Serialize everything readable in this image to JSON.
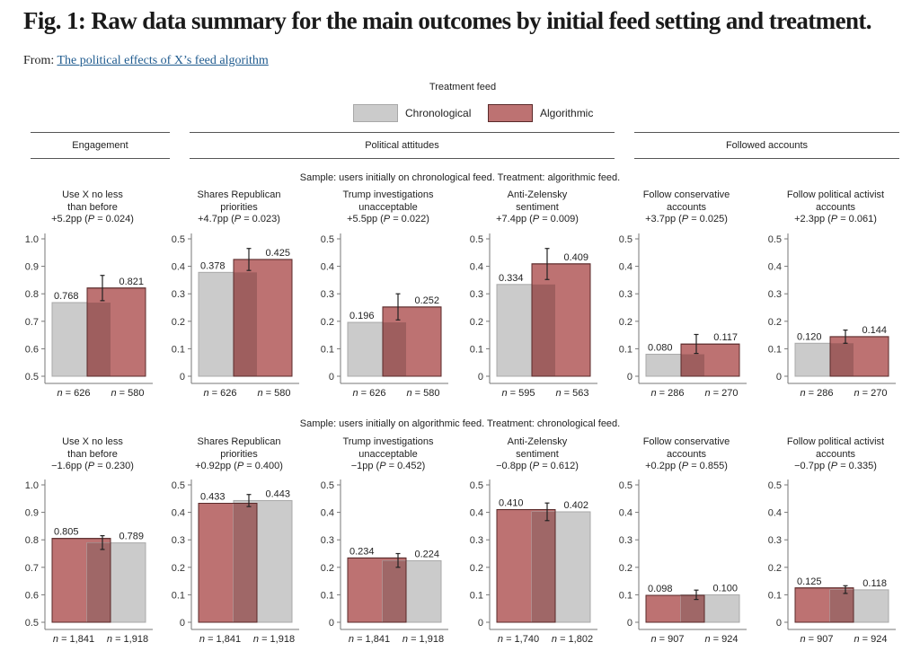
{
  "figure": {
    "title": "Fig. 1: Raw data summary for the main outcomes by initial feed setting and treatment.",
    "from_label": "From:",
    "from_link": "The political effects of X’s feed algorithm"
  },
  "legend": {
    "title": "Treatment feed",
    "items": [
      {
        "label": "Chronological",
        "color": "#cbcbcb"
      },
      {
        "label": "Algorithmic",
        "color": "#bd7272"
      }
    ]
  },
  "group_headers": [
    "Engagement",
    "Political attitudes",
    "Followed accounts"
  ],
  "rows": [
    {
      "sample_label": "Sample: users initially on chronological feed. Treatment: algorithmic feed."
    },
    {
      "sample_label": "Sample: users initially on algorithmic feed. Treatment: chronological feed."
    }
  ],
  "colors": {
    "chronological": "#cbcbcb",
    "algorithmic": "#bd7272",
    "overlap": "#9a5c5c",
    "axis": "#777777"
  },
  "chart_data": [
    {
      "type": "bar",
      "row": 0,
      "title_lines": [
        "Use X no less",
        "than before"
      ],
      "effect": "+5.2pp",
      "p": "0.024",
      "ylim": [
        0.5,
        1.0
      ],
      "yticks": [
        "0.5",
        "0.6",
        "0.7",
        "0.8",
        "0.9",
        "1.0"
      ],
      "bars": [
        {
          "series": "Chronological",
          "value": 0.768,
          "label": "0.768",
          "n": "n = 626"
        },
        {
          "series": "Algorithmic",
          "value": 0.821,
          "label": "0.821",
          "n": "n = 580",
          "ci": [
            0.775,
            0.867
          ]
        }
      ]
    },
    {
      "type": "bar",
      "row": 0,
      "title_lines": [
        "Shares Republican",
        "priorities"
      ],
      "effect": "+4.7pp",
      "p": "0.023",
      "ylim": [
        0,
        0.5
      ],
      "yticks": [
        "0",
        "0.1",
        "0.2",
        "0.3",
        "0.4",
        "0.5"
      ],
      "bars": [
        {
          "series": "Chronological",
          "value": 0.378,
          "label": "0.378",
          "n": "n = 626"
        },
        {
          "series": "Algorithmic",
          "value": 0.425,
          "label": "0.425",
          "n": "n = 580",
          "ci": [
            0.385,
            0.465
          ]
        }
      ]
    },
    {
      "type": "bar",
      "row": 0,
      "title_lines": [
        "Trump investigations",
        "unacceptable"
      ],
      "effect": "+5.5pp",
      "p": "0.022",
      "ylim": [
        0,
        0.5
      ],
      "yticks": [
        "0",
        "0.1",
        "0.2",
        "0.3",
        "0.4",
        "0.5"
      ],
      "bars": [
        {
          "series": "Chronological",
          "value": 0.196,
          "label": "0.196",
          "n": "n = 626"
        },
        {
          "series": "Algorithmic",
          "value": 0.252,
          "label": "0.252",
          "n": "n = 580",
          "ci": [
            0.205,
            0.3
          ]
        }
      ]
    },
    {
      "type": "bar",
      "row": 0,
      "title_lines": [
        "Anti-Zelensky",
        "sentiment"
      ],
      "effect": "+7.4pp",
      "p": "0.009",
      "ylim": [
        0,
        0.5
      ],
      "yticks": [
        "0",
        "0.1",
        "0.2",
        "0.3",
        "0.4",
        "0.5"
      ],
      "bars": [
        {
          "series": "Chronological",
          "value": 0.334,
          "label": "0.334",
          "n": "n = 595"
        },
        {
          "series": "Algorithmic",
          "value": 0.409,
          "label": "0.409",
          "n": "n = 563",
          "ci": [
            0.352,
            0.465
          ]
        }
      ]
    },
    {
      "type": "bar",
      "row": 0,
      "title_lines": [
        "Follow conservative",
        "accounts"
      ],
      "effect": "+3.7pp",
      "p": "0.025",
      "ylim": [
        0,
        0.5
      ],
      "yticks": [
        "0",
        "0.1",
        "0.2",
        "0.3",
        "0.4",
        "0.5"
      ],
      "bars": [
        {
          "series": "Chronological",
          "value": 0.08,
          "label": "0.080",
          "n": "n = 286"
        },
        {
          "series": "Algorithmic",
          "value": 0.117,
          "label": "0.117",
          "n": "n = 270",
          "ci": [
            0.083,
            0.152
          ]
        }
      ]
    },
    {
      "type": "bar",
      "row": 0,
      "title_lines": [
        "Follow political activist",
        "accounts"
      ],
      "effect": "+2.3pp",
      "p": "0.061",
      "ylim": [
        0,
        0.5
      ],
      "yticks": [
        "0",
        "0.1",
        "0.2",
        "0.3",
        "0.4",
        "0.5"
      ],
      "bars": [
        {
          "series": "Chronological",
          "value": 0.12,
          "label": "0.120",
          "n": "n = 286"
        },
        {
          "series": "Algorithmic",
          "value": 0.144,
          "label": "0.144",
          "n": "n = 270",
          "ci": [
            0.12,
            0.168
          ]
        }
      ]
    },
    {
      "type": "bar",
      "row": 1,
      "title_lines": [
        "Use X no less",
        "than before"
      ],
      "effect": "−1.6pp",
      "p": "0.230",
      "ylim": [
        0.5,
        1.0
      ],
      "yticks": [
        "0.5",
        "0.6",
        "0.7",
        "0.8",
        "0.9",
        "1.0"
      ],
      "bars": [
        {
          "series": "Algorithmic",
          "value": 0.805,
          "label": "0.805",
          "n": "n = 1,841"
        },
        {
          "series": "Chronological",
          "value": 0.789,
          "label": "0.789",
          "n": "n = 1,918",
          "ci": [
            0.765,
            0.815
          ]
        }
      ]
    },
    {
      "type": "bar",
      "row": 1,
      "title_lines": [
        "Shares Republican",
        "priorities"
      ],
      "effect": "+0.92pp",
      "p": "0.400",
      "ylim": [
        0,
        0.5
      ],
      "yticks": [
        "0",
        "0.1",
        "0.2",
        "0.3",
        "0.4",
        "0.5"
      ],
      "bars": [
        {
          "series": "Algorithmic",
          "value": 0.433,
          "label": "0.433",
          "n": "n = 1,841"
        },
        {
          "series": "Chronological",
          "value": 0.443,
          "label": "0.443",
          "n": "n = 1,918",
          "ci": [
            0.421,
            0.465
          ]
        }
      ]
    },
    {
      "type": "bar",
      "row": 1,
      "title_lines": [
        "Trump investigations",
        "unacceptable"
      ],
      "effect": "−1pp",
      "p": "0.452",
      "ylim": [
        0,
        0.5
      ],
      "yticks": [
        "0",
        "0.1",
        "0.2",
        "0.3",
        "0.4",
        "0.5"
      ],
      "bars": [
        {
          "series": "Algorithmic",
          "value": 0.234,
          "label": "0.234",
          "n": "n = 1,841"
        },
        {
          "series": "Chronological",
          "value": 0.224,
          "label": "0.224",
          "n": "n = 1,918",
          "ci": [
            0.2,
            0.25
          ]
        }
      ]
    },
    {
      "type": "bar",
      "row": 1,
      "title_lines": [
        "Anti-Zelensky",
        "sentiment"
      ],
      "effect": "−0.8pp",
      "p": "0.612",
      "ylim": [
        0,
        0.5
      ],
      "yticks": [
        "0",
        "0.1",
        "0.2",
        "0.3",
        "0.4",
        "0.5"
      ],
      "bars": [
        {
          "series": "Algorithmic",
          "value": 0.41,
          "label": "0.410",
          "n": "n = 1,740"
        },
        {
          "series": "Chronological",
          "value": 0.402,
          "label": "0.402",
          "n": "n = 1,802",
          "ci": [
            0.37,
            0.434
          ]
        }
      ]
    },
    {
      "type": "bar",
      "row": 1,
      "title_lines": [
        "Follow conservative",
        "accounts"
      ],
      "effect": "+0.2pp",
      "p": "0.855",
      "ylim": [
        0,
        0.5
      ],
      "yticks": [
        "0",
        "0.1",
        "0.2",
        "0.3",
        "0.4",
        "0.5"
      ],
      "bars": [
        {
          "series": "Algorithmic",
          "value": 0.098,
          "label": "0.098",
          "n": "n = 907"
        },
        {
          "series": "Chronological",
          "value": 0.1,
          "label": "0.100",
          "n": "n = 924",
          "ci": [
            0.083,
            0.117
          ]
        }
      ]
    },
    {
      "type": "bar",
      "row": 1,
      "title_lines": [
        "Follow political activist",
        "accounts"
      ],
      "effect": "−0.7pp",
      "p": "0.335",
      "ylim": [
        0,
        0.5
      ],
      "yticks": [
        "0",
        "0.1",
        "0.2",
        "0.3",
        "0.4",
        "0.5"
      ],
      "bars": [
        {
          "series": "Algorithmic",
          "value": 0.125,
          "label": "0.125",
          "n": "n = 907"
        },
        {
          "series": "Chronological",
          "value": 0.118,
          "label": "0.118",
          "n": "n = 924",
          "ci": [
            0.105,
            0.133
          ]
        }
      ]
    }
  ]
}
